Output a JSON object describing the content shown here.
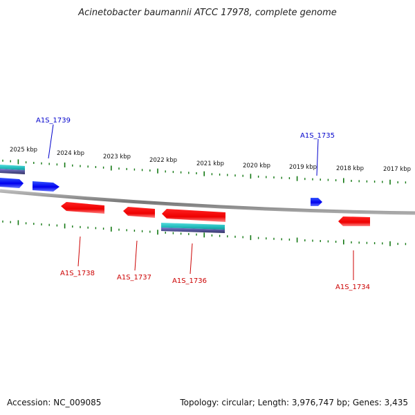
{
  "title": "Acinetobacter baumannii ATCC 17978, complete genome",
  "accession": "Accession: NC_009085",
  "summary": "Topology: circular; Length: 3,976,747 bp; Genes: 3,435",
  "scale_labels": [
    "2025 kbp",
    "2024 kbp",
    "2023 kbp",
    "2022 kbp",
    "2021 kbp",
    "2020 kbp",
    "2019 kbp",
    "2018 kbp",
    "2017 kbp"
  ],
  "genes": [
    {
      "id": "A1S_1739",
      "strand": "forward"
    },
    {
      "id": "A1S_1735",
      "strand": "forward"
    },
    {
      "id": "A1S_1738",
      "strand": "reverse"
    },
    {
      "id": "A1S_1737",
      "strand": "reverse"
    },
    {
      "id": "A1S_1736",
      "strand": "reverse"
    },
    {
      "id": "A1S_1734",
      "strand": "reverse"
    }
  ],
  "colors": {
    "forward_gene": "#0000ee",
    "reverse_gene": "#ee0000",
    "cds_feature": "#22cccc",
    "backbone": "#888888",
    "ticks": "#117711"
  }
}
